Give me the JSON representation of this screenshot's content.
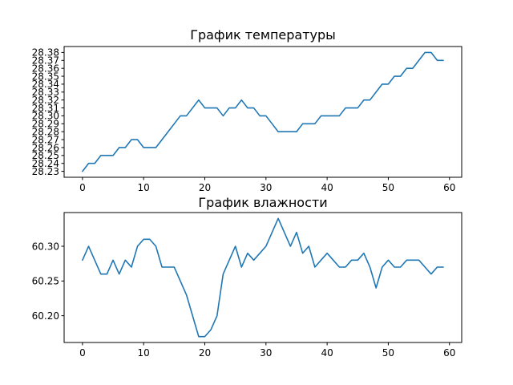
{
  "chart_data": [
    {
      "type": "line",
      "title": "График температуры",
      "xlabel": "",
      "ylabel": "",
      "xlim": [
        -3,
        62
      ],
      "ylim": [
        28.2225,
        28.3875
      ],
      "x_ticks": [
        0,
        10,
        20,
        30,
        40,
        50,
        60
      ],
      "y_ticks": [
        28.23,
        28.24,
        28.25,
        28.26,
        28.27,
        28.28,
        28.29,
        28.3,
        28.31,
        28.32,
        28.33,
        28.34,
        28.35,
        28.36,
        28.37,
        28.38
      ],
      "y_tick_labels": [
        "28.23",
        "28.24",
        "28.25",
        "28.26",
        "28.27",
        "28.28",
        "28.29",
        "28.30",
        "28.31",
        "28.32",
        "28.33",
        "28.34",
        "28.35",
        "28.36",
        "28.37",
        "28.38"
      ],
      "grid": false,
      "color": "#1f77b4",
      "series": [
        {
          "x": [
            0,
            1,
            2,
            3,
            4,
            5,
            6,
            7,
            8,
            9,
            10,
            11,
            12,
            13,
            14,
            15,
            16,
            17,
            18,
            19,
            20,
            21,
            22,
            23,
            24,
            25,
            26,
            27,
            28,
            29,
            30,
            31,
            32,
            33,
            34,
            35,
            36,
            37,
            38,
            39,
            40,
            41,
            42,
            43,
            44,
            45,
            46,
            47,
            48,
            49,
            50,
            51,
            52,
            53,
            54,
            55,
            56,
            57,
            58,
            59
          ],
          "values": [
            28.23,
            28.24,
            28.24,
            28.25,
            28.25,
            28.25,
            28.26,
            28.26,
            28.27,
            28.27,
            28.26,
            28.26,
            28.26,
            28.27,
            28.28,
            28.29,
            28.3,
            28.3,
            28.31,
            28.32,
            28.31,
            28.31,
            28.31,
            28.3,
            28.31,
            28.31,
            28.32,
            28.31,
            28.31,
            28.3,
            28.3,
            28.29,
            28.28,
            28.28,
            28.28,
            28.28,
            28.29,
            28.29,
            28.29,
            28.3,
            28.3,
            28.3,
            28.3,
            28.31,
            28.31,
            28.31,
            28.32,
            28.32,
            28.33,
            28.34,
            28.34,
            28.35,
            28.35,
            28.36,
            28.36,
            28.37,
            28.38,
            28.38,
            28.37,
            28.37
          ]
        }
      ]
    },
    {
      "type": "line",
      "title": "График влажности",
      "xlabel": "",
      "ylabel": "",
      "xlim": [
        -3,
        62
      ],
      "ylim": [
        60.1615,
        60.3485
      ],
      "x_ticks": [
        0,
        10,
        20,
        30,
        40,
        50,
        60
      ],
      "y_ticks": [
        60.2,
        60.25,
        60.3
      ],
      "y_tick_labels": [
        "60.20",
        "60.25",
        "60.30"
      ],
      "grid": false,
      "color": "#1f77b4",
      "series": [
        {
          "x": [
            0,
            1,
            2,
            3,
            4,
            5,
            6,
            7,
            8,
            9,
            10,
            11,
            12,
            13,
            14,
            15,
            16,
            17,
            18,
            19,
            20,
            21,
            22,
            23,
            24,
            25,
            26,
            27,
            28,
            29,
            30,
            31,
            32,
            33,
            34,
            35,
            36,
            37,
            38,
            39,
            40,
            41,
            42,
            43,
            44,
            45,
            46,
            47,
            48,
            49,
            50,
            51,
            52,
            53,
            54,
            55,
            56,
            57,
            58,
            59
          ],
          "values": [
            60.28,
            60.3,
            60.28,
            60.26,
            60.26,
            60.28,
            60.26,
            60.28,
            60.27,
            60.3,
            60.31,
            60.31,
            60.3,
            60.27,
            60.27,
            60.27,
            60.25,
            60.23,
            60.2,
            60.17,
            60.17,
            60.18,
            60.2,
            60.26,
            60.28,
            60.3,
            60.27,
            60.29,
            60.28,
            60.29,
            60.3,
            60.32,
            60.34,
            60.32,
            60.3,
            60.32,
            60.29,
            60.3,
            60.27,
            60.28,
            60.29,
            60.28,
            60.27,
            60.27,
            60.28,
            60.28,
            60.29,
            60.27,
            60.24,
            60.27,
            60.28,
            60.27,
            60.27,
            60.28,
            60.28,
            60.28,
            60.27,
            60.26,
            60.27,
            60.27
          ]
        }
      ]
    }
  ]
}
